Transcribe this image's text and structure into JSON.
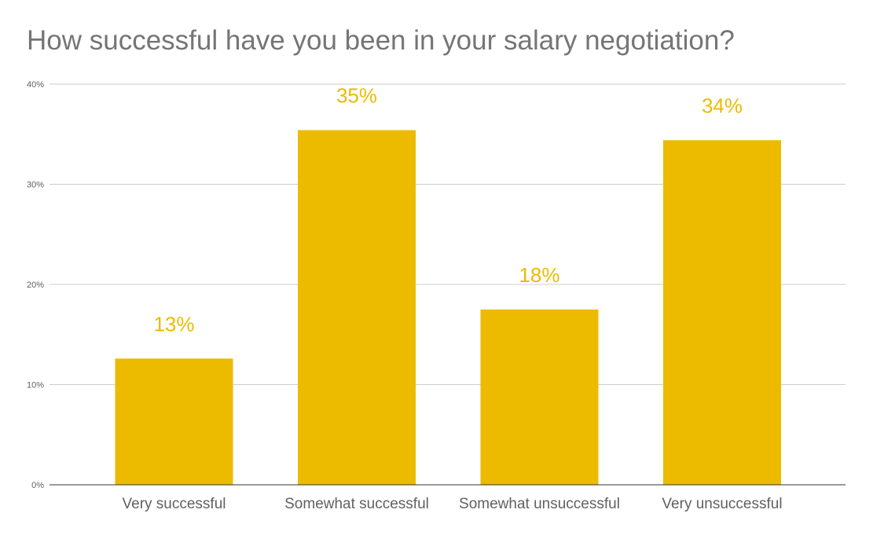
{
  "chart_data": {
    "type": "bar",
    "title": "How successful have you been in your salary negotiation?",
    "categories": [
      "Very successful",
      "Somewhat successful",
      "Somewhat unsuccessful",
      "Very unsuccessful"
    ],
    "values": [
      12.6,
      35.4,
      17.5,
      34.4
    ],
    "data_labels": [
      "13%",
      "35%",
      "18%",
      "34%"
    ],
    "ylim": [
      0,
      40
    ],
    "yticks": [
      0,
      10,
      20,
      30,
      40
    ],
    "ytick_labels": [
      "0%",
      "10%",
      "20%",
      "30%",
      "40%"
    ],
    "xlabel": "",
    "ylabel": "",
    "grid": true,
    "legend": "none",
    "colors": {
      "bar": "#ecbb00",
      "data_label": "#ecbb00",
      "grid": "#cccccc",
      "axis": "#333333",
      "title": "#757575",
      "text": "#616161"
    }
  }
}
